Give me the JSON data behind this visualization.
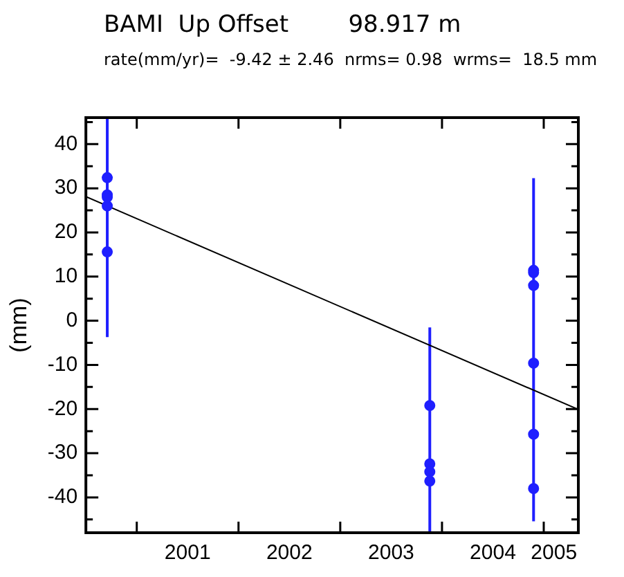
{
  "chart_data": {
    "type": "scatter",
    "title": "BAMI  Up Offset        98.917 m",
    "subtitle": "rate(mm/yr)=  -9.42 ± 2.46  nrms= 0.98  wrms=  18.5 mm",
    "ylabel": "(mm)",
    "series": [
      {
        "color": "#1f1fff",
        "x": [
          2000.71,
          2000.71,
          2000.71,
          2000.71,
          2000.71,
          2003.88,
          2003.88,
          2003.88,
          2003.88,
          2004.9,
          2004.9,
          2004.9,
          2004.9,
          2004.9,
          2004.9
        ],
        "values": [
          32.4,
          28.5,
          28,
          26,
          15.6,
          -19.2,
          -32.4,
          -34.2,
          -36.3,
          11.4,
          10.9,
          8,
          -9.6,
          -25.7,
          -38
        ],
        "errors": [
          null,
          null,
          null,
          null,
          [
            -3.7,
            46
          ],
          [
            -48,
            -1.5
          ],
          null,
          null,
          null,
          null,
          null,
          null,
          [
            -45.4,
            32.3
          ],
          null,
          null
        ]
      },
      {
        "type": "line",
        "marker": "none",
        "color": "#000000",
        "x": [
          2000.5,
          2005.34
        ],
        "values": [
          28.1,
          -20.1
        ]
      }
    ],
    "xlim": [
      2000.5,
      2005.34
    ],
    "xticks": [
      {
        "value": 2001,
        "label": null
      },
      {
        "value": 2001.5,
        "label": "2001"
      },
      {
        "value": 2002,
        "label": null
      },
      {
        "value": 2002.5,
        "label": "2002"
      },
      {
        "value": 2003,
        "label": null
      },
      {
        "value": 2003.5,
        "label": "2003"
      },
      {
        "value": 2004,
        "label": null
      },
      {
        "value": 2004.5,
        "label": "2004"
      },
      {
        "value": 2005,
        "label": null
      },
      {
        "value": 2005.1,
        "label": "2005"
      }
    ],
    "ylim": [
      -48,
      46
    ],
    "yticks": [
      {
        "value": -45,
        "label": null
      },
      -40,
      {
        "value": -35,
        "label": null
      },
      -30,
      {
        "value": -25,
        "label": null
      },
      -20,
      {
        "value": -15,
        "label": null
      },
      -10,
      {
        "value": -5,
        "label": null
      },
      0,
      {
        "value": 5,
        "label": null
      },
      10,
      {
        "value": 15,
        "label": null
      },
      20,
      {
        "value": 25,
        "label": null
      },
      30,
      {
        "value": 35,
        "label": null
      },
      40,
      {
        "value": 45,
        "label": null
      }
    ],
    "grid": false,
    "legend": false,
    "marker": "circle"
  }
}
